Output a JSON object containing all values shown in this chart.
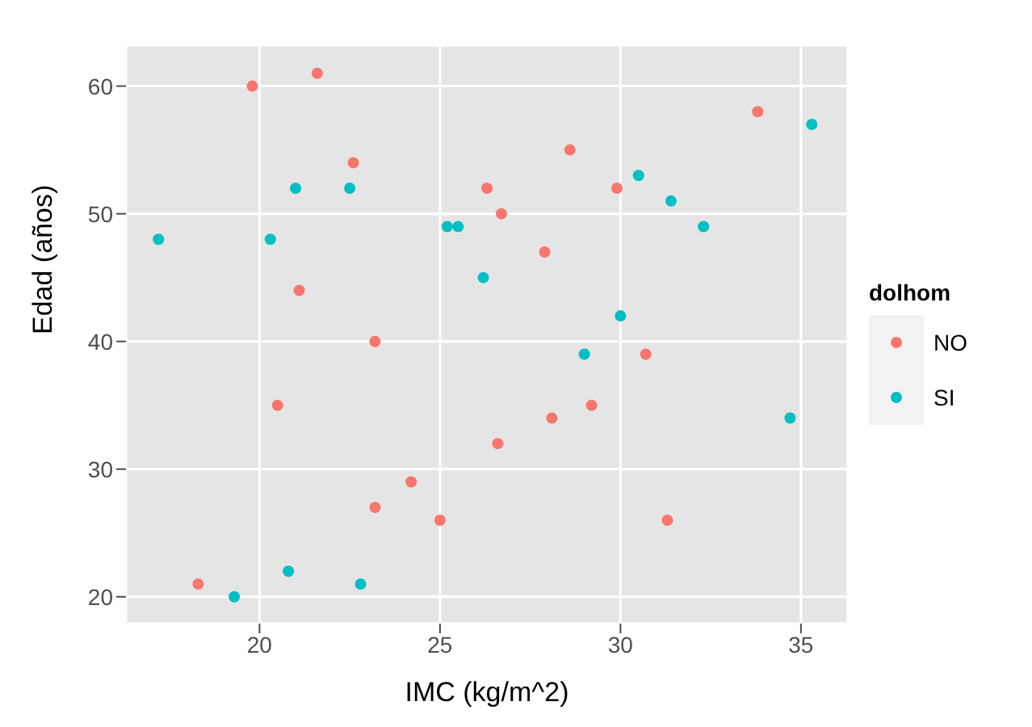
{
  "chart_data": {
    "type": "scatter",
    "xlabel": "IMC (kg/m^2)",
    "ylabel": "Edad (años)",
    "legend_title": "dolhom",
    "legend": "right",
    "grid": true,
    "marker": "circle",
    "xlim": [
      16.3,
      36.3
    ],
    "xticks": [
      20,
      25,
      30,
      35
    ],
    "ylim": [
      17.9,
      63.2
    ],
    "yticks": [
      20,
      30,
      40,
      50,
      60
    ],
    "series": [
      {
        "name": "NO",
        "color": "#f8766d",
        "x": [
          19.8,
          21.6,
          22.6,
          23.2,
          21.1,
          20.5,
          23.2,
          24.2,
          25.0,
          18.3,
          26.3,
          26.7,
          27.9,
          28.6,
          29.9,
          28.1,
          29.2,
          30.7,
          26.6,
          31.3,
          33.8
        ],
        "values": [
          60,
          61,
          54,
          40,
          44,
          35,
          27,
          29,
          26,
          21,
          52,
          50,
          47,
          55,
          52,
          34,
          35,
          39,
          32,
          26,
          58
        ]
      },
      {
        "name": "SI",
        "color": "#00bfc4",
        "x": [
          17.2,
          21.0,
          20.3,
          22.5,
          25.2,
          25.5,
          26.2,
          20.8,
          19.3,
          22.8,
          30.5,
          31.4,
          32.3,
          30.0,
          29.0,
          34.7,
          35.3
        ],
        "values": [
          48,
          52,
          48,
          52,
          49,
          49,
          45,
          22,
          20,
          21,
          53,
          51,
          49,
          42,
          39,
          34,
          57
        ]
      }
    ]
  }
}
